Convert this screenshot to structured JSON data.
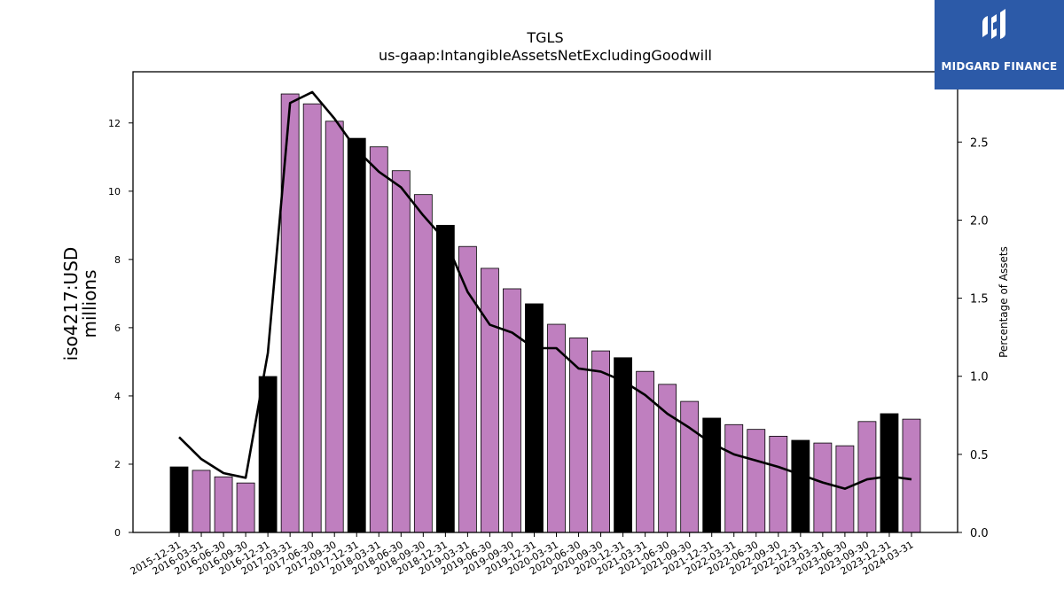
{
  "chart_data": {
    "type": "bar",
    "title": "TGLS",
    "subtitle": "us-gaap:IntangibleAssetsNetExcludingGoodwill",
    "ylabel_line1": "iso4217:USD",
    "ylabel_line2": "millions",
    "y2label": "Percentage of Assets",
    "ylim": [
      0,
      13.5
    ],
    "y2lim": [
      0,
      2.95
    ],
    "yticks": [
      "0",
      "2",
      "4",
      "6",
      "8",
      "10",
      "12"
    ],
    "y2ticks": [
      "0.0",
      "0.5",
      "1.0",
      "1.5",
      "2.0",
      "2.5"
    ],
    "categories": [
      "2015-12-31",
      "2016-03-31",
      "2016-06-30",
      "2016-09-30",
      "2016-12-31",
      "2017-03-31",
      "2017-06-30",
      "2017-09-30",
      "2017-12-31",
      "2018-03-31",
      "2018-06-30",
      "2018-09-30",
      "2018-12-31",
      "2019-03-31",
      "2019-06-30",
      "2019-09-30",
      "2019-12-31",
      "2020-03-31",
      "2020-06-30",
      "2020-09-30",
      "2020-12-31",
      "2021-03-31",
      "2021-06-30",
      "2021-09-30",
      "2021-12-31",
      "2022-03-31",
      "2022-06-30",
      "2022-09-30",
      "2022-12-31",
      "2023-03-31",
      "2023-06-30",
      "2023-09-30",
      "2023-12-31",
      "2024-03-31"
    ],
    "series": [
      {
        "kind": "bar",
        "values": [
          1.92,
          1.82,
          1.63,
          1.45,
          4.57,
          12.85,
          12.56,
          12.05,
          11.55,
          11.3,
          10.6,
          9.9,
          9.0,
          8.38,
          7.74,
          7.14,
          6.7,
          6.1,
          5.7,
          5.32,
          5.12,
          4.72,
          4.34,
          3.84,
          3.35,
          3.16,
          3.02,
          2.82,
          2.7,
          2.62,
          2.54,
          3.25,
          3.48,
          3.32
        ]
      },
      {
        "kind": "line",
        "axis": "right",
        "values": [
          0.61,
          0.47,
          0.38,
          0.35,
          1.15,
          2.75,
          2.82,
          2.65,
          2.45,
          2.31,
          2.21,
          2.03,
          1.87,
          1.54,
          1.33,
          1.28,
          1.18,
          1.18,
          1.05,
          1.03,
          0.97,
          0.88,
          0.76,
          0.67,
          0.57,
          0.5,
          0.46,
          0.42,
          0.37,
          0.32,
          0.28,
          0.34,
          0.36,
          0.34
        ]
      }
    ],
    "colors": {
      "bar": "#bf7fbf",
      "bar_year_end": "#000000",
      "line": "#000000",
      "edge": "#000000"
    },
    "grid": false
  },
  "logo": {
    "text": "MIDGARD FINANCE",
    "color": "#2c5aa8"
  }
}
